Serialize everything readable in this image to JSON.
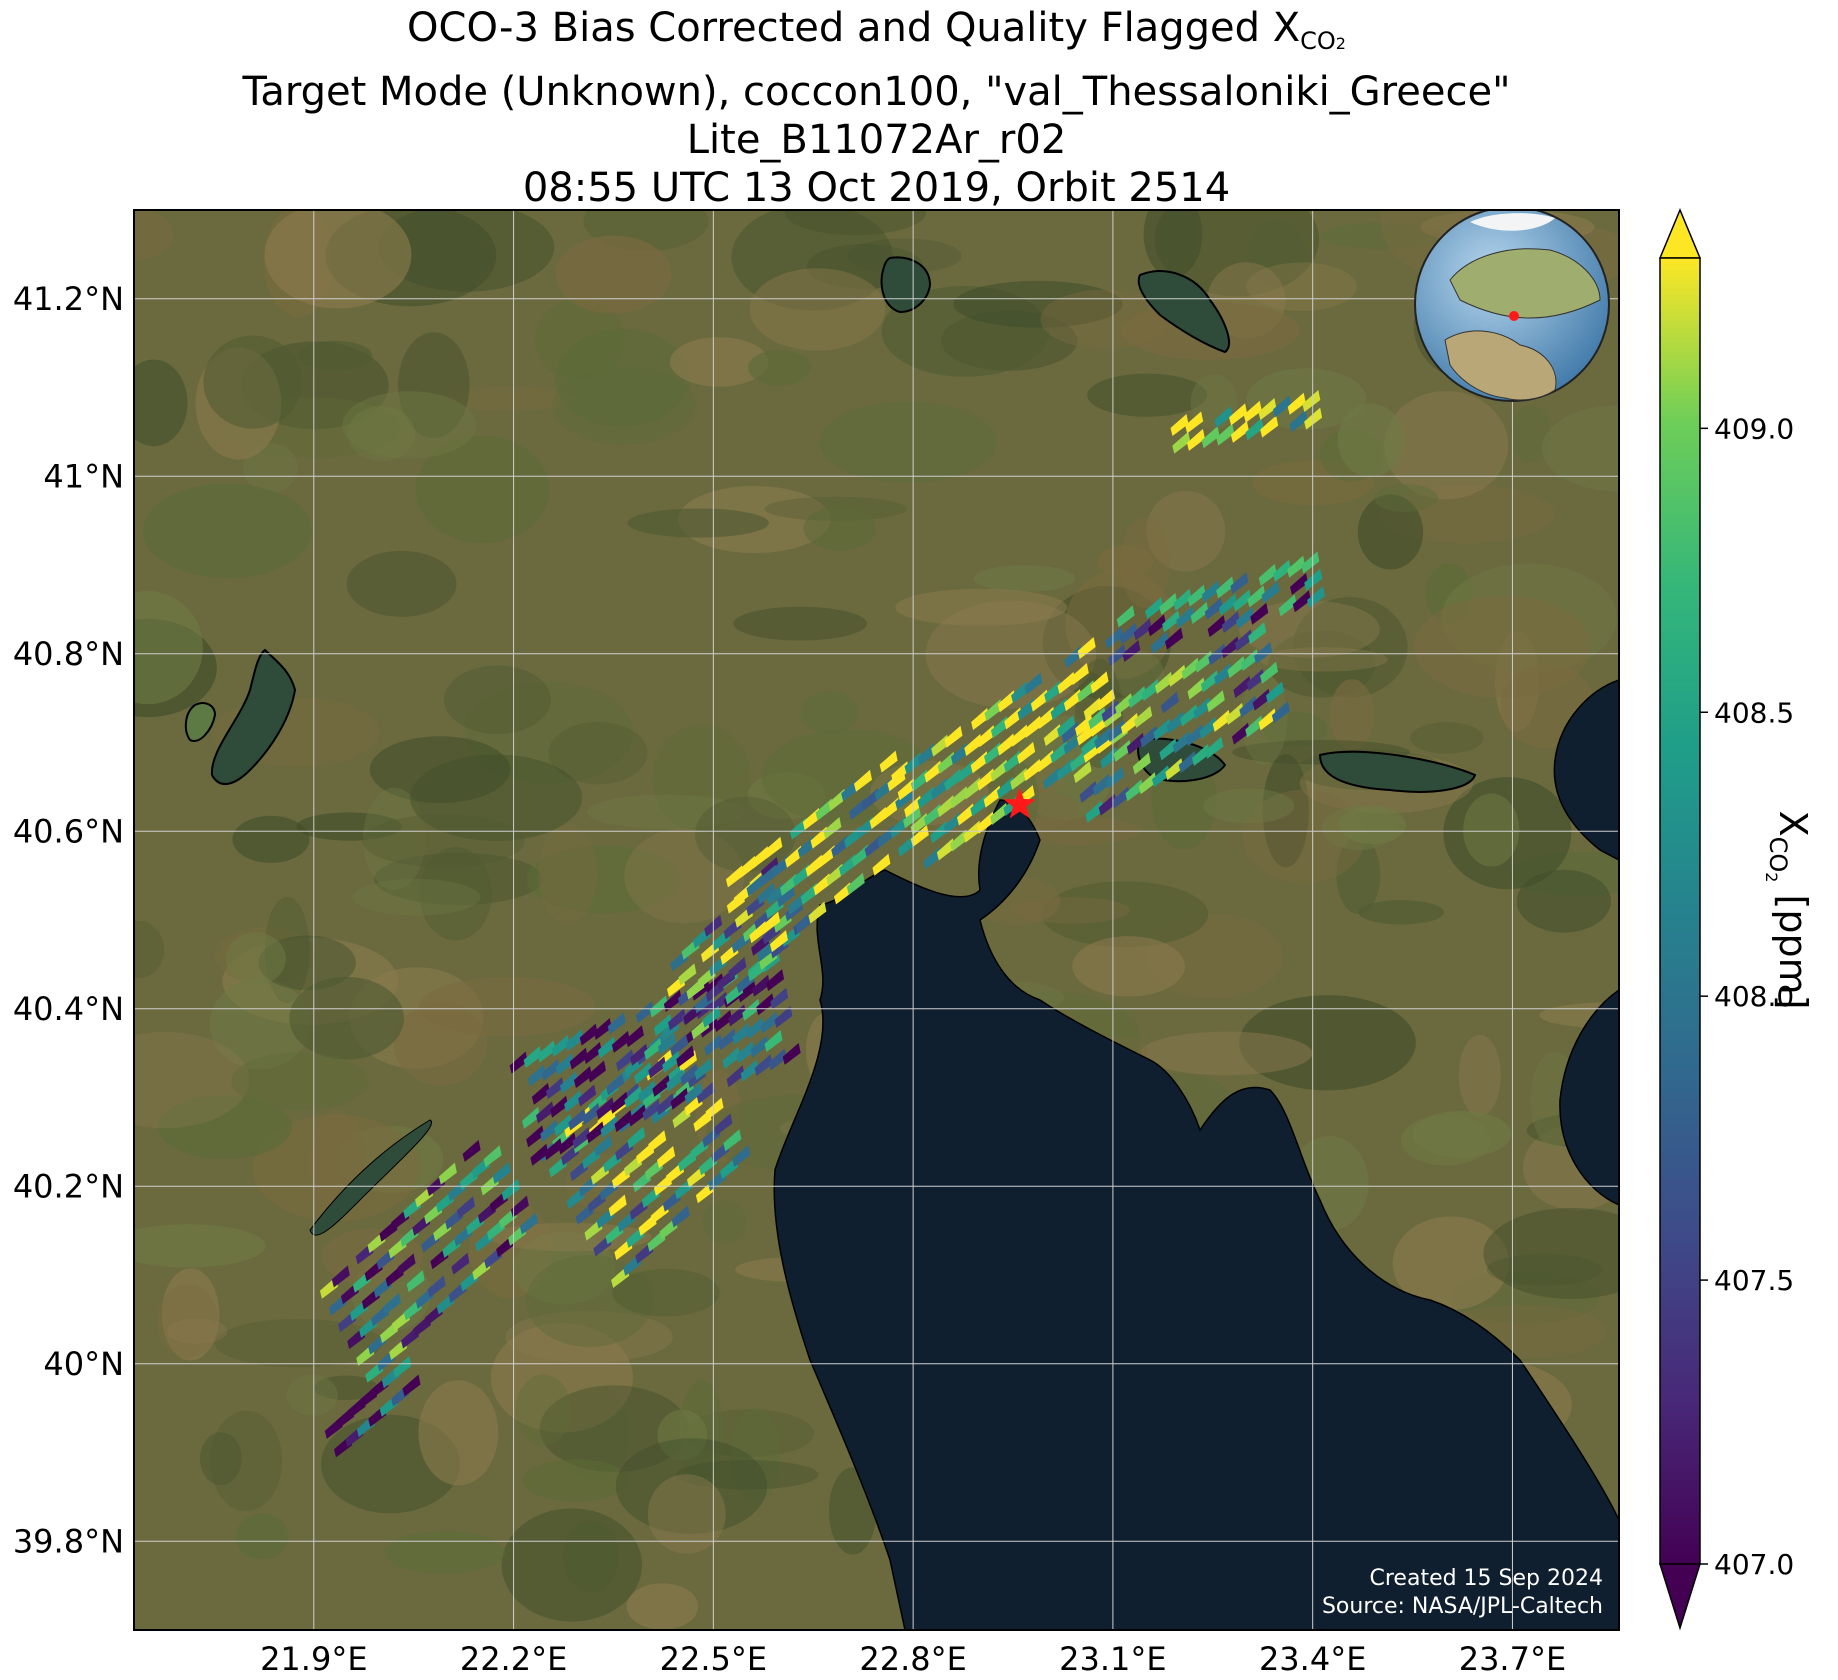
{
  "title": {
    "line1_prefix": "OCO-3 Bias Corrected and Quality Flagged X",
    "line1_sub": "CO",
    "line1_sub2": "2",
    "line2": "Target Mode (Unknown), coccon100, \"val_Thessaloniki_Greece\"",
    "line3": "Lite_B11072Ar_r02",
    "line4": "08:55 UTC 13 Oct 2019, Orbit 2514"
  },
  "map": {
    "lon_range": [
      21.63,
      23.86
    ],
    "lat_range": [
      39.7,
      41.3
    ],
    "lon_ticks": [
      {
        "value": 21.9,
        "label": "21.9°E"
      },
      {
        "value": 22.2,
        "label": "22.2°E"
      },
      {
        "value": 22.5,
        "label": "22.5°E"
      },
      {
        "value": 22.8,
        "label": "22.8°E"
      },
      {
        "value": 23.1,
        "label": "23.1°E"
      },
      {
        "value": 23.4,
        "label": "23.4°E"
      },
      {
        "value": 23.7,
        "label": "23.7°E"
      }
    ],
    "lat_ticks": [
      {
        "value": 39.8,
        "label": "39.8°N"
      },
      {
        "value": 40.0,
        "label": "40°N"
      },
      {
        "value": 40.2,
        "label": "40.2°N"
      },
      {
        "value": 40.4,
        "label": "40.4°N"
      },
      {
        "value": 40.6,
        "label": "40.6°N"
      },
      {
        "value": 40.8,
        "label": "40.8°N"
      },
      {
        "value": 41.0,
        "label": "41°N"
      },
      {
        "value": 41.2,
        "label": "41.2°N"
      }
    ],
    "target_site": {
      "lon": 22.96,
      "lat": 40.63,
      "marker": "star",
      "color": "#ff1a1a"
    },
    "colors": {
      "land": "#6b6a3e",
      "sea": "#0f1f30",
      "grid": "#cfcfcf"
    }
  },
  "swath": {
    "note_units": "XCO2 ppm",
    "segments": [
      {
        "from": [
          21.93,
          39.93
        ],
        "to": [
          22.05,
          40.01
        ],
        "width": 0.05,
        "base": 407.3
      },
      {
        "from": [
          21.95,
          40.05
        ],
        "to": [
          22.2,
          40.23
        ],
        "width": 0.14,
        "base": 408.0
      },
      {
        "from": [
          22.3,
          40.18
        ],
        "to": [
          22.5,
          40.33
        ],
        "width": 0.2,
        "base": 408.6
      },
      {
        "from": [
          22.22,
          40.3
        ],
        "to": [
          22.62,
          40.42
        ],
        "width": 0.13,
        "base": 407.6
      },
      {
        "from": [
          22.45,
          40.42
        ],
        "to": [
          22.62,
          40.55
        ],
        "width": 0.1,
        "base": 408.3
      },
      {
        "from": [
          22.55,
          40.52
        ],
        "to": [
          22.8,
          40.66
        ],
        "width": 0.12,
        "base": 408.9
      },
      {
        "from": [
          22.8,
          40.63
        ],
        "to": [
          23.1,
          40.78
        ],
        "width": 0.13,
        "base": 409.1
      },
      {
        "from": [
          23.05,
          40.68
        ],
        "to": [
          23.35,
          40.8
        ],
        "width": 0.12,
        "base": 408.2
      },
      {
        "from": [
          23.1,
          40.83
        ],
        "to": [
          23.42,
          40.9
        ],
        "width": 0.06,
        "base": 407.7
      },
      {
        "from": [
          23.2,
          41.06
        ],
        "to": [
          23.42,
          41.09
        ],
        "width": 0.04,
        "base": 408.9
      }
    ]
  },
  "colorbar": {
    "label_prefix": "X",
    "label_sub": "CO",
    "label_sub2": "2",
    "label_suffix": " [ppm]",
    "vmin": 407.0,
    "vmax": 409.3,
    "ticks": [
      {
        "value": 407.0,
        "label": "407.0"
      },
      {
        "value": 407.5,
        "label": "407.5"
      },
      {
        "value": 408.0,
        "label": "408.0"
      },
      {
        "value": 408.5,
        "label": "408.5"
      },
      {
        "value": 409.0,
        "label": "409.0"
      }
    ],
    "colormap": "viridis",
    "extend": "both"
  },
  "footnote": {
    "created": "Created 15 Sep 2024",
    "source": "Source: NASA/JPL-Caltech"
  },
  "inset_globe": {
    "icon": "globe-icon",
    "marker_color": "#ff1a1a"
  }
}
